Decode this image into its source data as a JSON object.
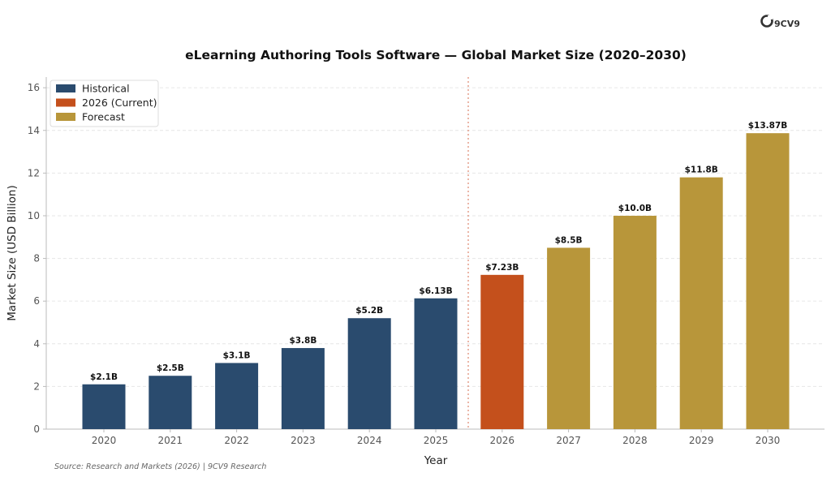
{
  "logo": {
    "text": "9CV9"
  },
  "source": "Source: Research and Markets (2026) | 9CV9 Research",
  "colors": {
    "historical": "#2a4b6e",
    "current": "#c4501c",
    "forecast": "#b8963a",
    "divider": "#e0907a",
    "grid": "#e6e6e6"
  },
  "chart_data": {
    "type": "bar",
    "title": "eLearning Authoring Tools Software — Global Market Size (2020–2030)",
    "xlabel": "Year",
    "ylabel": "Market Size (USD Billion)",
    "ylim": [
      0,
      16.5
    ],
    "yticks": [
      0,
      2,
      4,
      6,
      8,
      10,
      12,
      14,
      16
    ],
    "grid": true,
    "legend_position": "top-left",
    "categories": [
      "2020",
      "2021",
      "2022",
      "2023",
      "2024",
      "2025",
      "2026",
      "2027",
      "2028",
      "2029",
      "2030"
    ],
    "values": [
      2.1,
      2.5,
      3.1,
      3.8,
      5.2,
      6.13,
      7.23,
      8.5,
      10.0,
      11.8,
      13.87
    ],
    "value_labels": [
      "$2.1B",
      "$2.5B",
      "$3.1B",
      "$3.8B",
      "$5.2B",
      "$6.13B",
      "$7.23B",
      "$8.5B",
      "$10.0B",
      "$11.8B",
      "$13.87B"
    ],
    "groups": [
      "historical",
      "historical",
      "historical",
      "historical",
      "historical",
      "historical",
      "current",
      "forecast",
      "forecast",
      "forecast",
      "forecast"
    ],
    "legend": [
      {
        "key": "historical",
        "label": "Historical"
      },
      {
        "key": "current",
        "label": "2026 (Current)"
      },
      {
        "key": "forecast",
        "label": "Forecast"
      }
    ]
  }
}
